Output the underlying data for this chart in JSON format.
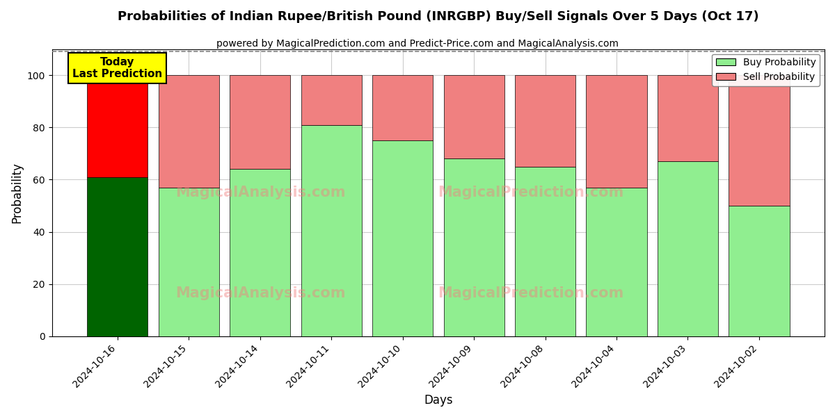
{
  "title": "Probabilities of Indian Rupee/British Pound (INRGBP) Buy/Sell Signals Over 5 Days (Oct 17)",
  "subtitle": "powered by MagicalPrediction.com and Predict-Price.com and MagicalAnalysis.com",
  "xlabel": "Days",
  "ylabel": "Probability",
  "dates": [
    "2024-10-16",
    "2024-10-15",
    "2024-10-14",
    "2024-10-11",
    "2024-10-10",
    "2024-10-09",
    "2024-10-08",
    "2024-10-04",
    "2024-10-03",
    "2024-10-02"
  ],
  "buy_values": [
    61,
    57,
    64,
    81,
    75,
    68,
    65,
    57,
    67,
    50
  ],
  "sell_values": [
    39,
    43,
    36,
    19,
    25,
    32,
    35,
    43,
    33,
    50
  ],
  "first_bar_buy_color": "#006400",
  "first_bar_sell_color": "#FF0000",
  "buy_color": "#90EE90",
  "sell_color": "#F08080",
  "today_box_color": "#FFFF00",
  "today_box_text": "Today\nLast Prediction",
  "legend_buy_label": "Buy Probability",
  "legend_sell_label": "Sell Probability",
  "ylim": [
    0,
    110
  ],
  "yticks": [
    0,
    20,
    40,
    60,
    80,
    100
  ],
  "dashed_line_y": 109,
  "background_color": "#ffffff",
  "grid_color": "#cccccc",
  "bar_width": 0.85
}
